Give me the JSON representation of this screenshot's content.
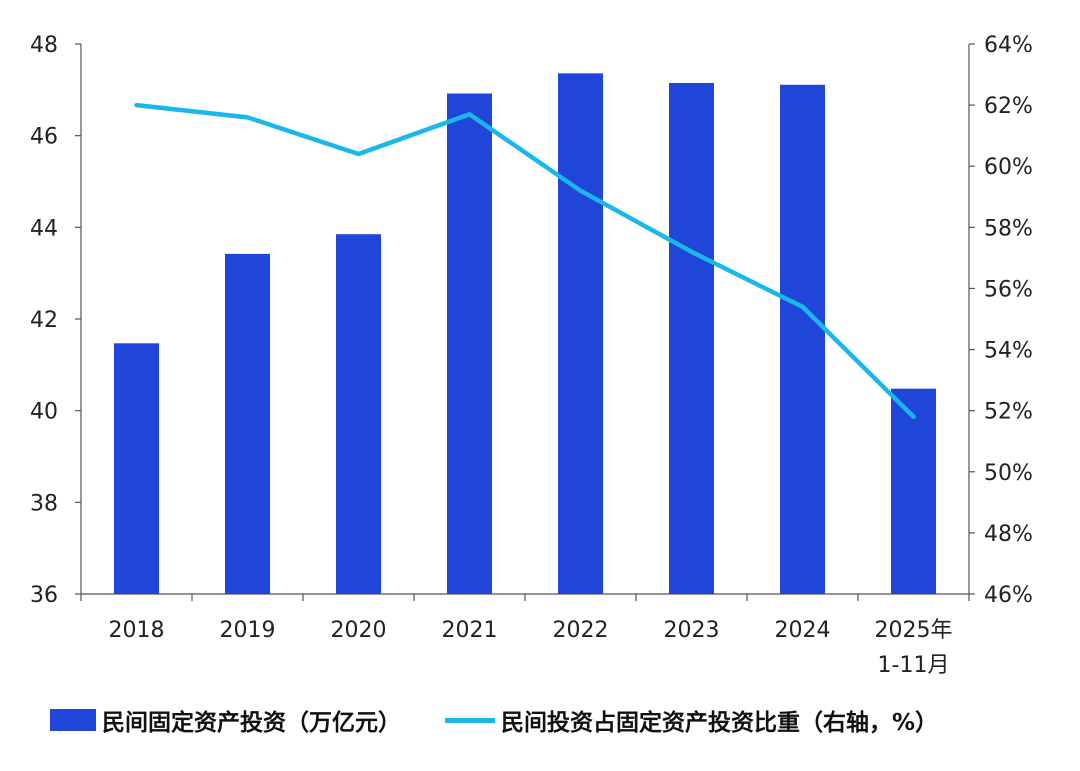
{
  "chart_data": {
    "type": "bar+line",
    "categories": [
      "2018",
      "2019",
      "2020",
      "2021",
      "2022",
      "2023",
      "2024",
      "2025年\n1-11月"
    ],
    "series": [
      {
        "name": "民间固定资产投资（万亿元）",
        "type": "bar",
        "axis": "left",
        "color": "#1f45d9",
        "values": [
          41.47,
          43.42,
          43.85,
          46.92,
          47.36,
          47.15,
          47.11,
          40.48
        ]
      },
      {
        "name": "民间投资占固定资产投资比重（右轴，%）",
        "type": "line",
        "axis": "right",
        "color": "#1ab7ea",
        "values": [
          62.0,
          61.6,
          60.4,
          61.7,
          59.2,
          57.2,
          55.4,
          51.8
        ]
      }
    ],
    "y_left": {
      "min": 36,
      "max": 48,
      "ticks": [
        "36",
        "38",
        "40",
        "42",
        "44",
        "46",
        "48"
      ]
    },
    "y_right": {
      "min": 46,
      "max": 64,
      "ticks": [
        "46%",
        "48%",
        "50%",
        "52%",
        "54%",
        "56%",
        "58%",
        "60%",
        "62%",
        "64%"
      ]
    },
    "grid": false,
    "legend_position": "bottom"
  },
  "legend": {
    "bar_label": "民间固定资产投资（万亿元）",
    "line_label": "民间投资占固定资产投资比重（右轴，%）"
  }
}
